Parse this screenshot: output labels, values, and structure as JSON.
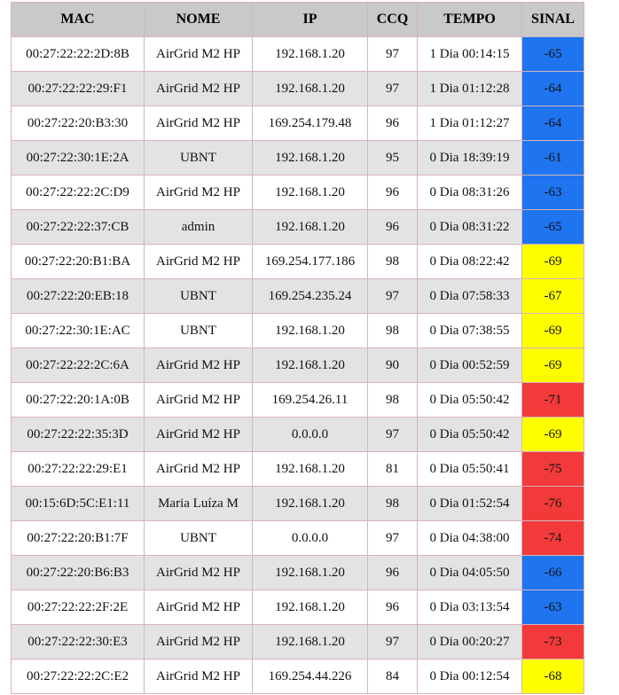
{
  "columns": [
    "MAC",
    "NOME",
    "IP",
    "CCQ",
    "TEMPO",
    "SINAL"
  ],
  "colors": {
    "blue": "#1f74f0",
    "yellow": "#ffff00",
    "red": "#f23a3a"
  },
  "rows": [
    {
      "mac": "00:27:22:22:2D:8B",
      "nome": "AirGrid M2 HP",
      "ip": "192.168.1.20",
      "ccq": "97",
      "tempo": "1 Dia 00:14:15",
      "sinal": "-65",
      "color": "blue"
    },
    {
      "mac": "00:27:22:22:29:F1",
      "nome": "AirGrid M2 HP",
      "ip": "192.168.1.20",
      "ccq": "97",
      "tempo": "1 Dia 01:12:28",
      "sinal": "-64",
      "color": "blue"
    },
    {
      "mac": "00:27:22:20:B3:30",
      "nome": "AirGrid M2 HP",
      "ip": "169.254.179.48",
      "ccq": "96",
      "tempo": "1 Dia 01:12:27",
      "sinal": "-64",
      "color": "blue"
    },
    {
      "mac": "00:27:22:30:1E:2A",
      "nome": "UBNT",
      "ip": "192.168.1.20",
      "ccq": "95",
      "tempo": "0 Dia 18:39:19",
      "sinal": "-61",
      "color": "blue"
    },
    {
      "mac": "00:27:22:22:2C:D9",
      "nome": "AirGrid M2 HP",
      "ip": "192.168.1.20",
      "ccq": "96",
      "tempo": "0 Dia 08:31:26",
      "sinal": "-63",
      "color": "blue"
    },
    {
      "mac": "00:27:22:22:37:CB",
      "nome": "admin",
      "ip": "192.168.1.20",
      "ccq": "96",
      "tempo": "0 Dia 08:31:22",
      "sinal": "-65",
      "color": "blue"
    },
    {
      "mac": "00:27:22:20:B1:BA",
      "nome": "AirGrid M2 HP",
      "ip": "169.254.177.186",
      "ccq": "98",
      "tempo": "0 Dia 08:22:42",
      "sinal": "-69",
      "color": "yellow"
    },
    {
      "mac": "00:27:22:20:EB:18",
      "nome": "UBNT",
      "ip": "169.254.235.24",
      "ccq": "97",
      "tempo": "0 Dia 07:58:33",
      "sinal": "-67",
      "color": "yellow"
    },
    {
      "mac": "00:27:22:30:1E:AC",
      "nome": "UBNT",
      "ip": "192.168.1.20",
      "ccq": "98",
      "tempo": "0 Dia 07:38:55",
      "sinal": "-69",
      "color": "yellow"
    },
    {
      "mac": "00:27:22:22:2C:6A",
      "nome": "AirGrid M2 HP",
      "ip": "192.168.1.20",
      "ccq": "90",
      "tempo": "0 Dia 00:52:59",
      "sinal": "-69",
      "color": "yellow"
    },
    {
      "mac": "00:27:22:20:1A:0B",
      "nome": "AirGrid M2 HP",
      "ip": "169.254.26.11",
      "ccq": "98",
      "tempo": "0 Dia 05:50:42",
      "sinal": "-71",
      "color": "red"
    },
    {
      "mac": "00:27:22:22:35:3D",
      "nome": "AirGrid M2 HP",
      "ip": "0.0.0.0",
      "ccq": "97",
      "tempo": "0 Dia 05:50:42",
      "sinal": "-69",
      "color": "yellow"
    },
    {
      "mac": "00:27:22:22:29:E1",
      "nome": "AirGrid M2 HP",
      "ip": "192.168.1.20",
      "ccq": "81",
      "tempo": "0 Dia 05:50:41",
      "sinal": "-75",
      "color": "red"
    },
    {
      "mac": "00:15:6D:5C:E1:11",
      "nome": "Maria Luíza M",
      "ip": "192.168.1.20",
      "ccq": "98",
      "tempo": "0 Dia 01:52:54",
      "sinal": "-76",
      "color": "red"
    },
    {
      "mac": "00:27:22:20:B1:7F",
      "nome": "UBNT",
      "ip": "0.0.0.0",
      "ccq": "97",
      "tempo": "0 Dia 04:38:00",
      "sinal": "-74",
      "color": "red"
    },
    {
      "mac": "00:27:22:20:B6:B3",
      "nome": "AirGrid M2 HP",
      "ip": "192.168.1.20",
      "ccq": "96",
      "tempo": "0 Dia 04:05:50",
      "sinal": "-66",
      "color": "blue"
    },
    {
      "mac": "00:27:22:22:2F:2E",
      "nome": "AirGrid M2 HP",
      "ip": "192.168.1.20",
      "ccq": "96",
      "tempo": "0 Dia 03:13:54",
      "sinal": "-63",
      "color": "blue"
    },
    {
      "mac": "00:27:22:22:30:E3",
      "nome": "AirGrid M2 HP",
      "ip": "192.168.1.20",
      "ccq": "97",
      "tempo": "0 Dia 00:20:27",
      "sinal": "-73",
      "color": "red"
    },
    {
      "mac": "00:27:22:22:2C:E2",
      "nome": "AirGrid M2 HP",
      "ip": "169.254.44.226",
      "ccq": "84",
      "tempo": "0 Dia 00:12:54",
      "sinal": "-68",
      "color": "yellow"
    }
  ]
}
